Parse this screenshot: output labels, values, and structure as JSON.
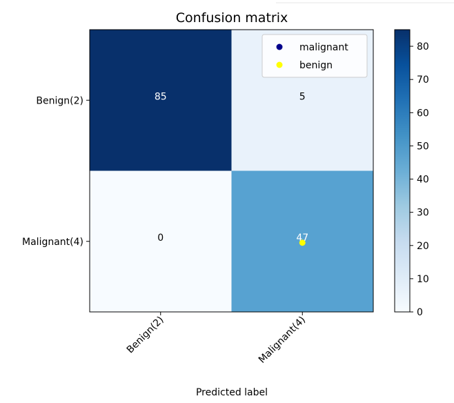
{
  "chart_data": {
    "type": "heatmap",
    "title": "Confusion matrix",
    "xlabel": "Predicted label",
    "ylabel": "",
    "x_categories": [
      "Benign(2)",
      "Malignant(4)"
    ],
    "y_categories": [
      "Benign(2)",
      "Malignant(4)"
    ],
    "matrix": [
      [
        85,
        5
      ],
      [
        0,
        47
      ]
    ],
    "colormap": "Blues",
    "colorbar": {
      "min": 0,
      "max": 85,
      "ticks": [
        0,
        10,
        20,
        30,
        40,
        50,
        60,
        70,
        80
      ]
    },
    "cell_colors": [
      [
        "#08306b",
        "#e9f2fb"
      ],
      [
        "#f7fbff",
        "#57a2d1"
      ]
    ],
    "cell_text_colors": [
      [
        "#ffffff",
        "#000000"
      ],
      [
        "#000000",
        "#ffffff"
      ]
    ],
    "legend": {
      "placement": "upper right",
      "entries": [
        {
          "label": "malignant",
          "color": "#00008b",
          "marker": "circle"
        },
        {
          "label": "benign",
          "color": "#ffff00",
          "marker": "circle"
        }
      ]
    },
    "scatter_series": [
      {
        "name": "benign",
        "color": "#ffff00",
        "points": [
          {
            "x": 1,
            "y": 1
          }
        ]
      }
    ]
  }
}
